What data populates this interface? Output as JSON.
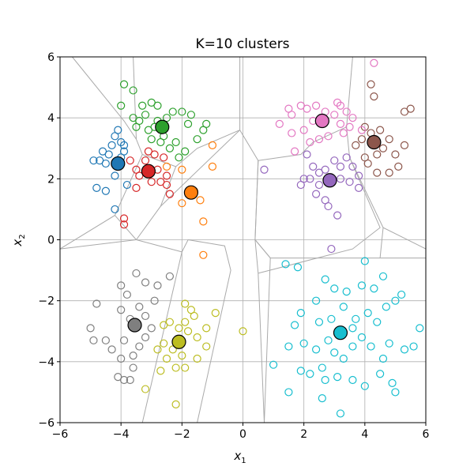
{
  "chart_data": {
    "type": "scatter",
    "title": "K=10 clusters",
    "xlabel": "x",
    "xlabel_sub": "1",
    "ylabel": "x",
    "ylabel_sub": "2",
    "xlim": [
      -6,
      6
    ],
    "ylim": [
      -6,
      6
    ],
    "xticks": [
      -6,
      -4,
      -2,
      0,
      2,
      4,
      6
    ],
    "yticks": [
      -6,
      -4,
      -2,
      0,
      2,
      4,
      6
    ],
    "xtick_labels": [
      "−6",
      "−4",
      "−2",
      "0",
      "2",
      "4",
      "6"
    ],
    "ytick_labels": [
      "−6",
      "−4",
      "−2",
      "0",
      "2",
      "4",
      "6"
    ],
    "grid": true,
    "colors": {
      "c0": "#1f77b4",
      "c1": "#ff7f0e",
      "c2": "#2ca02c",
      "c3": "#d62728",
      "c4": "#9467bd",
      "c5": "#8c564b",
      "c6": "#e377c2",
      "c7": "#7f7f7f",
      "c8": "#bcbd22",
      "c9": "#17becf",
      "grid": "#b0b0b0",
      "boundary": "#aaaaaa"
    },
    "series": [
      {
        "color_key": "c0",
        "centroid": [
          -4.1,
          2.5
        ],
        "points": [
          [
            -4.6,
            2.9
          ],
          [
            -4.3,
            3.1
          ],
          [
            -4.0,
            3.2
          ],
          [
            -4.5,
            2.5
          ],
          [
            -4.2,
            2.1
          ],
          [
            -4.7,
            2.6
          ],
          [
            -4.4,
            2.8
          ],
          [
            -3.9,
            2.9
          ],
          [
            -4.1,
            3.6
          ],
          [
            -4.2,
            3.4
          ],
          [
            -4.9,
            2.6
          ],
          [
            -4.5,
            1.6
          ],
          [
            -4.8,
            1.7
          ],
          [
            -4.2,
            1.0
          ],
          [
            -3.8,
            1.8
          ],
          [
            -4.0,
            2.7
          ],
          [
            -3.9,
            3.1
          ]
        ]
      },
      {
        "color_key": "c1",
        "centroid": [
          -1.7,
          1.55
        ],
        "points": [
          [
            -2.0,
            2.3
          ],
          [
            -1.0,
            3.1
          ],
          [
            -1.0,
            2.4
          ],
          [
            -1.4,
            1.3
          ],
          [
            -2.0,
            1.2
          ],
          [
            -1.3,
            0.6
          ],
          [
            -1.3,
            -0.5
          ],
          [
            -2.5,
            2.4
          ],
          [
            -1.6,
            1.6
          ]
        ]
      },
      {
        "color_key": "c2",
        "centroid": [
          -2.65,
          3.7
        ],
        "points": [
          [
            -3.9,
            5.1
          ],
          [
            -3.6,
            4.9
          ],
          [
            -3.0,
            4.5
          ],
          [
            -2.8,
            4.4
          ],
          [
            -3.2,
            4.1
          ],
          [
            -3.4,
            3.9
          ],
          [
            -3.5,
            3.7
          ],
          [
            -3.1,
            3.6
          ],
          [
            -2.8,
            3.9
          ],
          [
            -2.5,
            4.0
          ],
          [
            -2.3,
            4.2
          ],
          [
            -2.0,
            4.2
          ],
          [
            -1.7,
            4.1
          ],
          [
            -1.8,
            3.8
          ],
          [
            -1.2,
            3.8
          ],
          [
            -1.3,
            3.6
          ],
          [
            -2.6,
            3.4
          ],
          [
            -2.7,
            3.2
          ],
          [
            -3.0,
            3.3
          ],
          [
            -2.2,
            3.2
          ],
          [
            -2.4,
            3.0
          ],
          [
            -1.9,
            2.9
          ],
          [
            -2.1,
            2.7
          ],
          [
            -4.0,
            4.4
          ],
          [
            -3.6,
            4.0
          ],
          [
            -3.3,
            4.4
          ],
          [
            -2.9,
            3.7
          ],
          [
            -1.5,
            3.3
          ]
        ]
      },
      {
        "color_key": "c3",
        "centroid": [
          -3.1,
          2.25
        ],
        "points": [
          [
            -3.7,
            2.6
          ],
          [
            -3.5,
            2.3
          ],
          [
            -3.2,
            2.6
          ],
          [
            -2.9,
            2.8
          ],
          [
            -2.6,
            2.7
          ],
          [
            -2.8,
            2.3
          ],
          [
            -2.5,
            2.1
          ],
          [
            -3.4,
            2.1
          ],
          [
            -3.0,
            1.9
          ],
          [
            -2.7,
            1.9
          ],
          [
            -3.5,
            1.7
          ],
          [
            -2.5,
            1.8
          ],
          [
            -2.4,
            1.5
          ],
          [
            -3.9,
            0.7
          ],
          [
            -3.9,
            0.5
          ],
          [
            -3.1,
            2.9
          ]
        ]
      },
      {
        "color_key": "c4",
        "centroid": [
          2.85,
          1.95
        ],
        "points": [
          [
            2.1,
            2.8
          ],
          [
            2.3,
            2.4
          ],
          [
            2.5,
            2.2
          ],
          [
            2.2,
            2.0
          ],
          [
            2.5,
            1.8
          ],
          [
            2.7,
            2.3
          ],
          [
            3.0,
            2.6
          ],
          [
            3.2,
            2.4
          ],
          [
            3.2,
            2.0
          ],
          [
            3.5,
            1.9
          ],
          [
            3.8,
            1.7
          ],
          [
            3.8,
            2.1
          ],
          [
            2.0,
            2.0
          ],
          [
            2.4,
            1.5
          ],
          [
            2.7,
            1.3
          ],
          [
            2.8,
            1.1
          ],
          [
            3.1,
            0.8
          ],
          [
            2.9,
            -0.3
          ],
          [
            3.4,
            2.7
          ],
          [
            3.6,
            2.4
          ],
          [
            1.9,
            1.8
          ],
          [
            0.7,
            2.3
          ]
        ]
      },
      {
        "color_key": "c5",
        "centroid": [
          4.3,
          3.2
        ],
        "points": [
          [
            4.0,
            3.7
          ],
          [
            4.2,
            3.5
          ],
          [
            4.5,
            3.6
          ],
          [
            4.8,
            3.3
          ],
          [
            4.6,
            3.0
          ],
          [
            4.4,
            2.8
          ],
          [
            4.1,
            2.5
          ],
          [
            4.4,
            2.2
          ],
          [
            4.8,
            2.2
          ],
          [
            5.1,
            2.4
          ],
          [
            5.3,
            3.1
          ],
          [
            5.0,
            2.8
          ],
          [
            5.3,
            4.2
          ],
          [
            5.5,
            4.3
          ],
          [
            4.3,
            4.7
          ],
          [
            4.2,
            5.1
          ],
          [
            3.7,
            3.1
          ],
          [
            3.9,
            3.3
          ],
          [
            4.0,
            2.7
          ]
        ]
      },
      {
        "color_key": "c6",
        "centroid": [
          2.6,
          3.9
        ],
        "points": [
          [
            1.5,
            4.3
          ],
          [
            1.6,
            4.1
          ],
          [
            1.9,
            4.4
          ],
          [
            2.1,
            4.3
          ],
          [
            2.4,
            4.4
          ],
          [
            2.7,
            4.2
          ],
          [
            3.0,
            4.1
          ],
          [
            3.2,
            4.4
          ],
          [
            3.4,
            4.2
          ],
          [
            3.6,
            4.0
          ],
          [
            3.5,
            3.7
          ],
          [
            3.2,
            3.8
          ],
          [
            3.3,
            3.5
          ],
          [
            2.0,
            3.6
          ],
          [
            2.2,
            3.2
          ],
          [
            2.5,
            3.3
          ],
          [
            2.8,
            3.4
          ],
          [
            1.2,
            3.8
          ],
          [
            1.7,
            2.9
          ],
          [
            3.9,
            3.6
          ],
          [
            4.3,
            5.8
          ],
          [
            3.1,
            4.5
          ],
          [
            2.3,
            3.9
          ],
          [
            1.6,
            3.5
          ]
        ]
      },
      {
        "color_key": "c7",
        "centroid": [
          -3.55,
          -2.8
        ],
        "points": [
          [
            -4.0,
            -2.3
          ],
          [
            -3.7,
            -2.6
          ],
          [
            -3.4,
            -2.2
          ],
          [
            -3.2,
            -2.5
          ],
          [
            -3.0,
            -2.9
          ],
          [
            -3.2,
            -3.2
          ],
          [
            -3.4,
            -3.5
          ],
          [
            -3.6,
            -3.8
          ],
          [
            -4.0,
            -3.9
          ],
          [
            -3.9,
            -3.3
          ],
          [
            -4.3,
            -3.6
          ],
          [
            -4.5,
            -3.3
          ],
          [
            -4.9,
            -3.3
          ],
          [
            -5.0,
            -2.9
          ],
          [
            -4.8,
            -2.1
          ],
          [
            -4.0,
            -1.5
          ],
          [
            -3.5,
            -1.1
          ],
          [
            -3.2,
            -1.4
          ],
          [
            -2.8,
            -1.5
          ],
          [
            -2.4,
            -1.2
          ],
          [
            -3.6,
            -4.2
          ],
          [
            -3.9,
            -4.6
          ],
          [
            -3.8,
            -1.8
          ],
          [
            -2.9,
            -2.0
          ],
          [
            -3.7,
            -4.6
          ],
          [
            -4.1,
            -4.5
          ]
        ]
      },
      {
        "color_key": "c8",
        "centroid": [
          -2.1,
          -3.35
        ],
        "points": [
          [
            -2.6,
            -2.8
          ],
          [
            -2.4,
            -2.7
          ],
          [
            -2.1,
            -2.9
          ],
          [
            -1.9,
            -2.7
          ],
          [
            -1.7,
            -2.3
          ],
          [
            -1.9,
            -2.1
          ],
          [
            -1.8,
            -3.0
          ],
          [
            -1.5,
            -3.2
          ],
          [
            -1.2,
            -3.5
          ],
          [
            -1.5,
            -3.9
          ],
          [
            -2.0,
            -3.8
          ],
          [
            -2.3,
            -3.6
          ],
          [
            -2.6,
            -3.4
          ],
          [
            -2.5,
            -3.9
          ],
          [
            -2.8,
            -3.6
          ],
          [
            -2.2,
            -4.2
          ],
          [
            -1.9,
            -4.2
          ],
          [
            -2.7,
            -4.3
          ],
          [
            -3.2,
            -4.9
          ],
          [
            -2.2,
            -5.4
          ],
          [
            -0.9,
            -2.4
          ],
          [
            0.0,
            -3.0
          ],
          [
            -1.6,
            -2.5
          ],
          [
            -1.2,
            -2.9
          ]
        ]
      },
      {
        "color_key": "c9",
        "centroid": [
          3.2,
          -3.05
        ],
        "points": [
          [
            1.4,
            -0.8
          ],
          [
            1.8,
            -0.9
          ],
          [
            2.7,
            -1.3
          ],
          [
            3.0,
            -1.6
          ],
          [
            3.4,
            -1.7
          ],
          [
            3.9,
            -1.5
          ],
          [
            4.0,
            -0.7
          ],
          [
            4.3,
            -1.6
          ],
          [
            4.6,
            -1.2
          ],
          [
            5.0,
            -2.0
          ],
          [
            5.2,
            -1.8
          ],
          [
            5.8,
            -2.9
          ],
          [
            5.3,
            -3.6
          ],
          [
            4.8,
            -3.4
          ],
          [
            4.6,
            -3.9
          ],
          [
            4.5,
            -4.4
          ],
          [
            4.9,
            -4.7
          ],
          [
            5.0,
            -5.0
          ],
          [
            4.0,
            -4.8
          ],
          [
            3.6,
            -4.6
          ],
          [
            3.1,
            -4.5
          ],
          [
            2.6,
            -4.2
          ],
          [
            2.2,
            -4.4
          ],
          [
            1.9,
            -4.3
          ],
          [
            2.4,
            -3.6
          ],
          [
            2.0,
            -3.4
          ],
          [
            1.5,
            -3.5
          ],
          [
            1.7,
            -2.8
          ],
          [
            1.9,
            -2.4
          ],
          [
            2.4,
            -2.0
          ],
          [
            3.3,
            -2.2
          ],
          [
            3.7,
            -2.6
          ],
          [
            4.1,
            -2.4
          ],
          [
            4.4,
            -2.7
          ],
          [
            3.9,
            -3.2
          ],
          [
            3.6,
            -3.5
          ],
          [
            3.3,
            -3.9
          ],
          [
            3.0,
            -3.7
          ],
          [
            2.8,
            -3.3
          ],
          [
            2.5,
            -2.7
          ],
          [
            1.0,
            -4.1
          ],
          [
            1.5,
            -5.0
          ],
          [
            2.6,
            -5.2
          ],
          [
            3.2,
            -5.7
          ],
          [
            5.6,
            -3.5
          ],
          [
            4.7,
            -2.2
          ],
          [
            3.6,
            -2.9
          ],
          [
            2.9,
            -2.6
          ],
          [
            4.2,
            -3.5
          ],
          [
            2.7,
            -4.6
          ]
        ]
      }
    ],
    "boundaries": [
      [
        [
          -5.6,
          6.0
        ],
        [
          -3.9,
          3.9
        ],
        [
          -3.5,
          3.3
        ],
        [
          -3.3,
          2.8
        ],
        [
          -4.2,
          0.8
        ],
        [
          -6.0,
          -0.3
        ]
      ],
      [
        [
          -3.5,
          3.3
        ],
        [
          -3.6,
          6.0
        ]
      ],
      [
        [
          -3.3,
          2.8
        ],
        [
          -2.2,
          2.4
        ]
      ],
      [
        [
          -4.2,
          0.8
        ],
        [
          -3.5,
          0.0
        ],
        [
          -6.0,
          -0.3
        ]
      ],
      [
        [
          -3.5,
          0.0
        ],
        [
          -2.0,
          -0.4
        ],
        [
          -3.3,
          -6.0
        ]
      ],
      [
        [
          -2.0,
          -0.4
        ],
        [
          -1.8,
          0.0
        ],
        [
          -0.6,
          -0.2
        ],
        [
          -0.4,
          -1.0
        ],
        [
          -1.5,
          -6.0
        ]
      ],
      [
        [
          -2.2,
          2.4
        ],
        [
          -2.7,
          1.1
        ],
        [
          -3.5,
          0.0
        ]
      ],
      [
        [
          -2.2,
          2.4
        ],
        [
          -1.5,
          3.0
        ],
        [
          -0.1,
          3.6
        ],
        [
          -0.1,
          6.0
        ]
      ],
      [
        [
          -2.7,
          1.1
        ],
        [
          -0.1,
          3.6
        ]
      ],
      [
        [
          -0.1,
          3.6
        ],
        [
          0.5,
          2.6
        ],
        [
          0.4,
          0.0
        ],
        [
          0.9,
          -0.6
        ],
        [
          0.7,
          -6.0
        ]
      ],
      [
        [
          0.4,
          0.0
        ],
        [
          0.5,
          -1.1
        ],
        [
          0.7,
          -6.0
        ]
      ],
      [
        [
          0.9,
          -0.6
        ],
        [
          6.0,
          -0.6
        ]
      ],
      [
        [
          0.5,
          2.6
        ],
        [
          1.9,
          2.8
        ],
        [
          2.3,
          3.2
        ],
        [
          3.4,
          3.7
        ]
      ],
      [
        [
          3.4,
          3.7
        ],
        [
          3.6,
          6.0
        ]
      ],
      [
        [
          3.4,
          3.7
        ],
        [
          3.5,
          2.7
        ],
        [
          4.6,
          0.4
        ],
        [
          6.0,
          -0.3
        ]
      ],
      [
        [
          4.6,
          0.4
        ],
        [
          4.5,
          -0.6
        ]
      ],
      [
        [
          3.5,
          2.7
        ],
        [
          4.5,
          0.4
        ],
        [
          3.6,
          -0.3
        ],
        [
          0.5,
          -1.1
        ]
      ],
      [
        [
          0.5,
          2.6
        ],
        [
          0.4,
          0.0
        ],
        [
          0.9,
          -0.6
        ]
      ]
    ]
  }
}
